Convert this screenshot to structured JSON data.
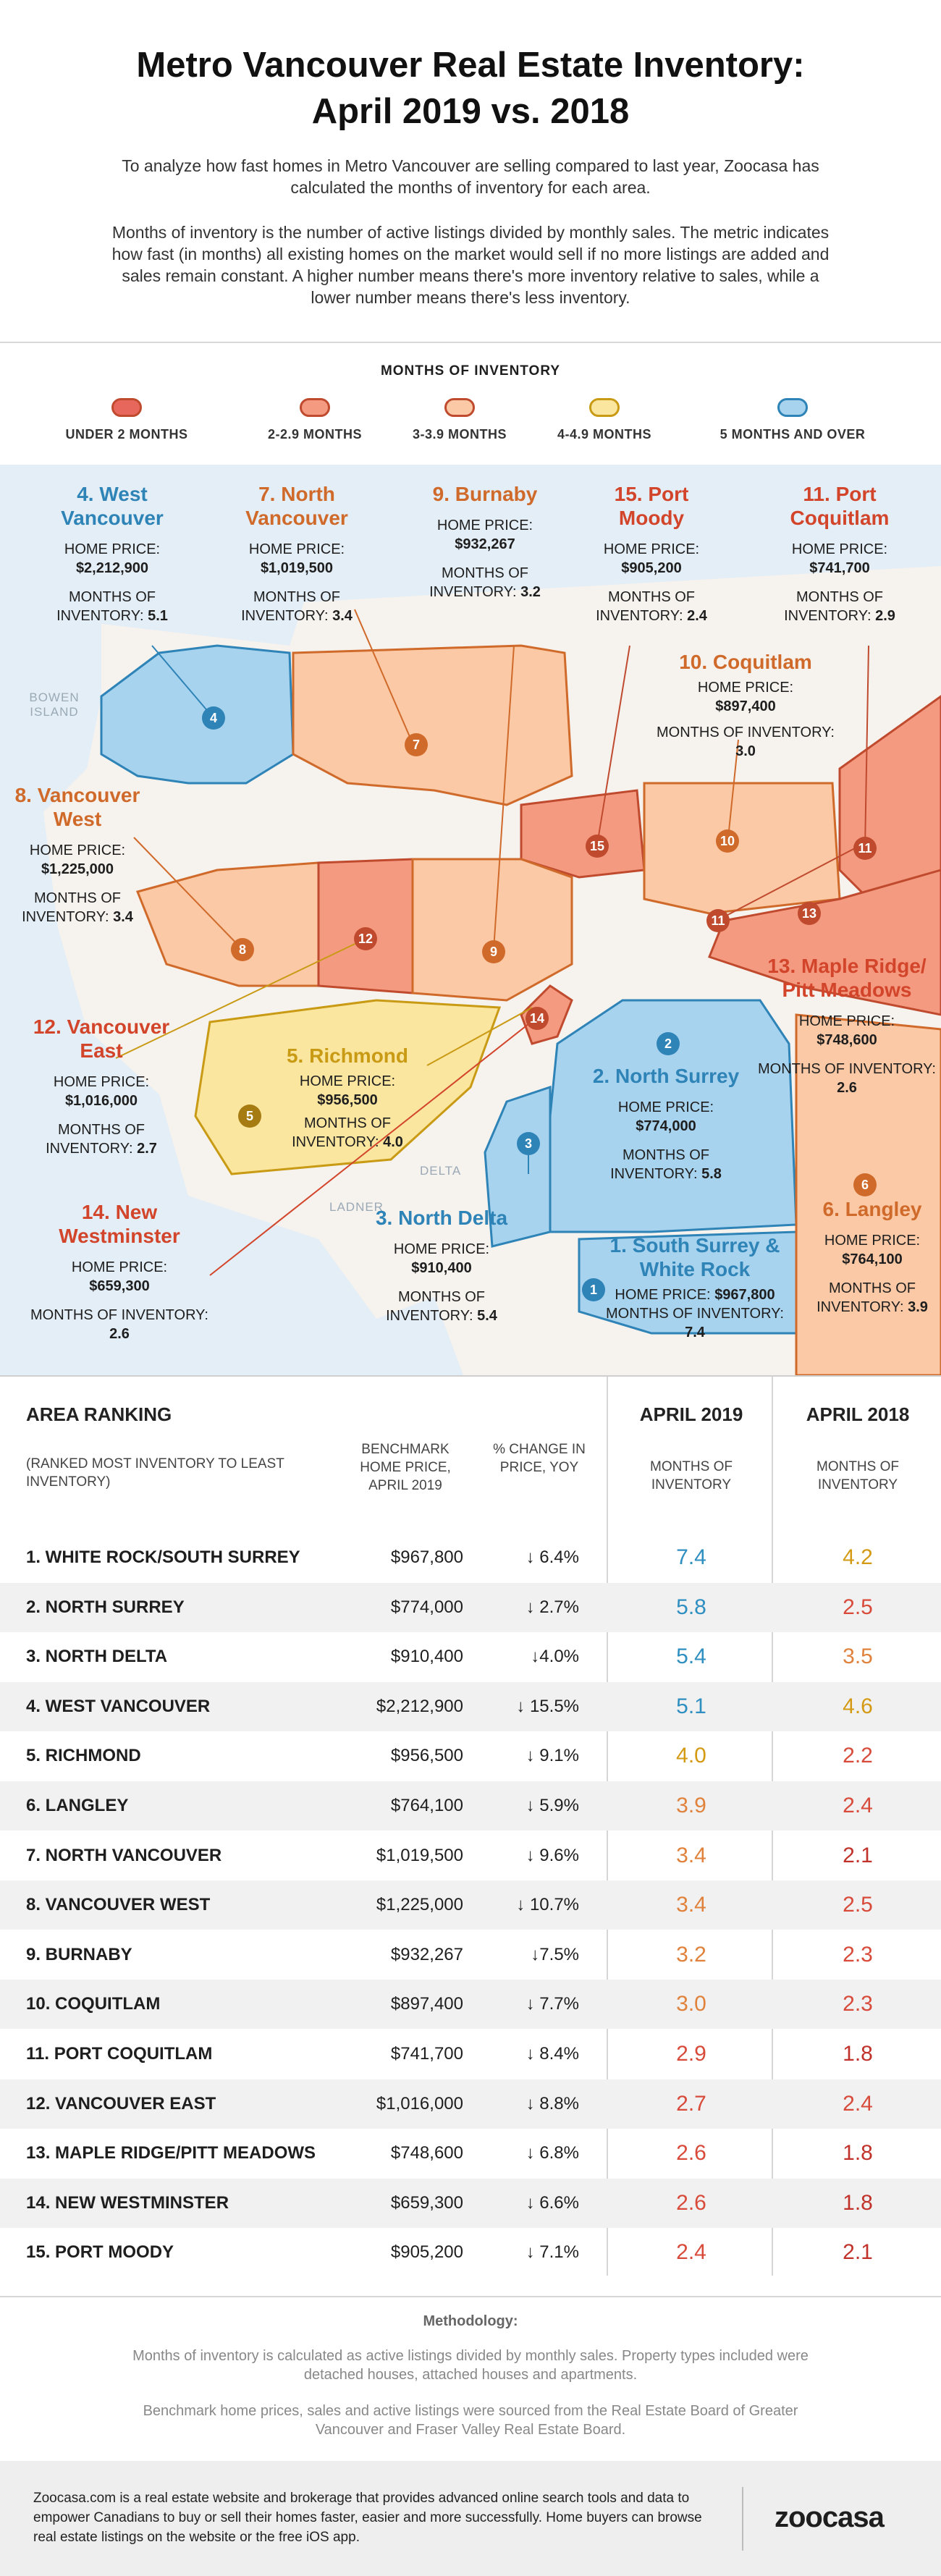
{
  "header": {
    "title_line1": "Metro Vancouver Real Estate Inventory:",
    "title_line2": "April 2019 vs. 2018",
    "intro1": "To analyze how fast homes in Metro Vancouver are selling compared to last year, Zoocasa has calculated the months of inventory for each area.",
    "intro2": "Months of inventory is the number of active listings divided by monthly sales. The metric indicates how fast (in months) all existing homes on the market would sell if no more listings are added and sales remain constant. A higher number means there's more inventory relative to sales, while a lower number means there's less inventory."
  },
  "legend": {
    "title": "MONTHS OF INVENTORY",
    "items": [
      {
        "label": "UNDER 2 MONTHS",
        "color": "#e8675c"
      },
      {
        "label": "2-2.9 MONTHS",
        "color": "#f49a80"
      },
      {
        "label": "3-3.9 MONTHS",
        "color": "#fbc9a6"
      },
      {
        "label": "4-4.9 MONTHS",
        "color": "#fbe6a0"
      },
      {
        "label": "5 MONTHS AND OVER",
        "color": "#a8d3ee"
      }
    ]
  },
  "map": {
    "common": {
      "home_price": "HOME PRICE:",
      "moi": "MONTHS OF INVENTORY:"
    },
    "places": {
      "bowen": "BOWEN ISLAND",
      "delta": "DELTA",
      "ladner": "LADNER"
    },
    "regions": [
      {
        "id": "4",
        "name": "4. West Vancouver",
        "price": "$2,212,900",
        "moi": "5.1"
      },
      {
        "id": "7",
        "name": "7. North Vancouver",
        "price": "$1,019,500",
        "moi": "3.4"
      },
      {
        "id": "9",
        "name": "9. Burnaby",
        "price": "$932,267",
        "moi": "3.2"
      },
      {
        "id": "15",
        "name": "15. Port Moody",
        "price": "$905,200",
        "moi": "2.4"
      },
      {
        "id": "11",
        "name": "11. Port Coquitlam",
        "price": "$741,700",
        "moi": "2.9"
      },
      {
        "id": "10",
        "name": "10. Coquitlam",
        "price": "$897,400",
        "moi": "3.0"
      },
      {
        "id": "8",
        "name": "8. Vancouver West",
        "price": "$1,225,000",
        "moi": "3.4"
      },
      {
        "id": "13",
        "name": "13. Maple Ridge/ Pitt Meadows",
        "price": "$748,600",
        "moi": "2.6"
      },
      {
        "id": "12",
        "name": "12. Vancouver East",
        "price": "$1,016,000",
        "moi": "2.7"
      },
      {
        "id": "5",
        "name": "5. Richmond",
        "price": "$956,500",
        "moi": "4.0"
      },
      {
        "id": "2",
        "name": "2. North Surrey",
        "price": "$774,000",
        "moi": "5.8"
      },
      {
        "id": "3",
        "name": "3. North Delta",
        "price": "$910,400",
        "moi": "5.4"
      },
      {
        "id": "14",
        "name": "14. New Westminster",
        "price": "$659,300",
        "moi": "2.6"
      },
      {
        "id": "1",
        "name": "1. South Surrey & White Rock",
        "price": "$967,800",
        "moi": "7.4"
      },
      {
        "id": "6",
        "name": "6. Langley",
        "price": "$764,100",
        "moi": "3.9"
      }
    ]
  },
  "table": {
    "h_area": "AREA RANKING",
    "h_area_sub": "(RANKED MOST INVENTORY TO LEAST INVENTORY)",
    "h_price": "BENCHMARK HOME PRICE, APRIL 2019",
    "h_change": "% CHANGE IN PRICE, YOY",
    "h_2019": "APRIL 2019",
    "h_2018": "APRIL 2018",
    "h_moi": "MONTHS OF INVENTORY",
    "rows": [
      {
        "area": "1. WHITE ROCK/SOUTH SURREY",
        "price": "$967,800",
        "change": "↓ 6.4%",
        "m19": "7.4",
        "m18": "4.2",
        "c19": "#2e8fc0",
        "c18": "#d49a14"
      },
      {
        "area": "2. NORTH SURREY",
        "price": "$774,000",
        "change": "↓ 2.7%",
        "m19": "5.8",
        "m18": "2.5",
        "c19": "#2e8fc0",
        "c18": "#d84a3a"
      },
      {
        "area": "3. NORTH DELTA",
        "price": "$910,400",
        "change": "↓4.0%",
        "m19": "5.4",
        "m18": "3.5",
        "c19": "#2e8fc0",
        "c18": "#e0823c"
      },
      {
        "area": "4. WEST VANCOUVER",
        "price": "$2,212,900",
        "change": "↓ 15.5%",
        "m19": "5.1",
        "m18": "4.6",
        "c19": "#2e8fc0",
        "c18": "#d49a14"
      },
      {
        "area": "5. RICHMOND",
        "price": "$956,500",
        "change": "↓ 9.1%",
        "m19": "4.0",
        "m18": "2.2",
        "c19": "#d49a14",
        "c18": "#d84a3a"
      },
      {
        "area": "6. LANGLEY",
        "price": "$764,100",
        "change": "↓ 5.9%",
        "m19": "3.9",
        "m18": "2.4",
        "c19": "#e0823c",
        "c18": "#d84a3a"
      },
      {
        "area": "7. NORTH VANCOUVER",
        "price": "$1,019,500",
        "change": "↓ 9.6%",
        "m19": "3.4",
        "m18": "2.1",
        "c19": "#e0823c",
        "c18": "#c0322a"
      },
      {
        "area": "8. VANCOUVER WEST",
        "price": "$1,225,000",
        "change": "↓ 10.7%",
        "m19": "3.4",
        "m18": "2.5",
        "c19": "#e0823c",
        "c18": "#d84a3a"
      },
      {
        "area": "9. BURNABY",
        "price": "$932,267",
        "change": "↓7.5%",
        "m19": "3.2",
        "m18": "2.3",
        "c19": "#e0823c",
        "c18": "#d84a3a"
      },
      {
        "area": "10. COQUITLAM",
        "price": "$897,400",
        "change": "↓ 7.7%",
        "m19": "3.0",
        "m18": "2.3",
        "c19": "#e0823c",
        "c18": "#d84a3a"
      },
      {
        "area": "11. PORT COQUITLAM",
        "price": "$741,700",
        "change": "↓ 8.4%",
        "m19": "2.9",
        "m18": "1.8",
        "c19": "#d84a3a",
        "c18": "#c0322a"
      },
      {
        "area": "12. VANCOUVER EAST",
        "price": "$1,016,000",
        "change": "↓ 8.8%",
        "m19": "2.7",
        "m18": "2.4",
        "c19": "#d84a3a",
        "c18": "#d84a3a"
      },
      {
        "area": "13. MAPLE RIDGE/PITT MEADOWS",
        "price": "$748,600",
        "change": "↓ 6.8%",
        "m19": "2.6",
        "m18": "1.8",
        "c19": "#d84a3a",
        "c18": "#c0322a"
      },
      {
        "area": "14. NEW WESTMINSTER",
        "price": "$659,300",
        "change": "↓ 6.6%",
        "m19": "2.6",
        "m18": "1.8",
        "c19": "#d84a3a",
        "c18": "#c0322a"
      },
      {
        "area": "15. PORT MOODY",
        "price": "$905,200",
        "change": "↓ 7.1%",
        "m19": "2.4",
        "m18": "2.1",
        "c19": "#d84a3a",
        "c18": "#c0322a"
      }
    ]
  },
  "methodology": {
    "title": "Methodology:",
    "p1": "Months of inventory is calculated as active listings divided by monthly sales. Property types included were detached houses, attached houses and apartments.",
    "p2": "Benchmark home prices, sales and active listings were sourced from the Real Estate Board of Greater Vancouver and Fraser Valley Real Estate Board."
  },
  "footer": {
    "text": "Zoocasa.com is a real estate website and brokerage that provides advanced online search tools and data to empower Canadians to buy or sell their homes faster, easier and more successfully. Home buyers can browse real estate listings on the website or the free iOS app.",
    "logo": "zoocasa"
  }
}
